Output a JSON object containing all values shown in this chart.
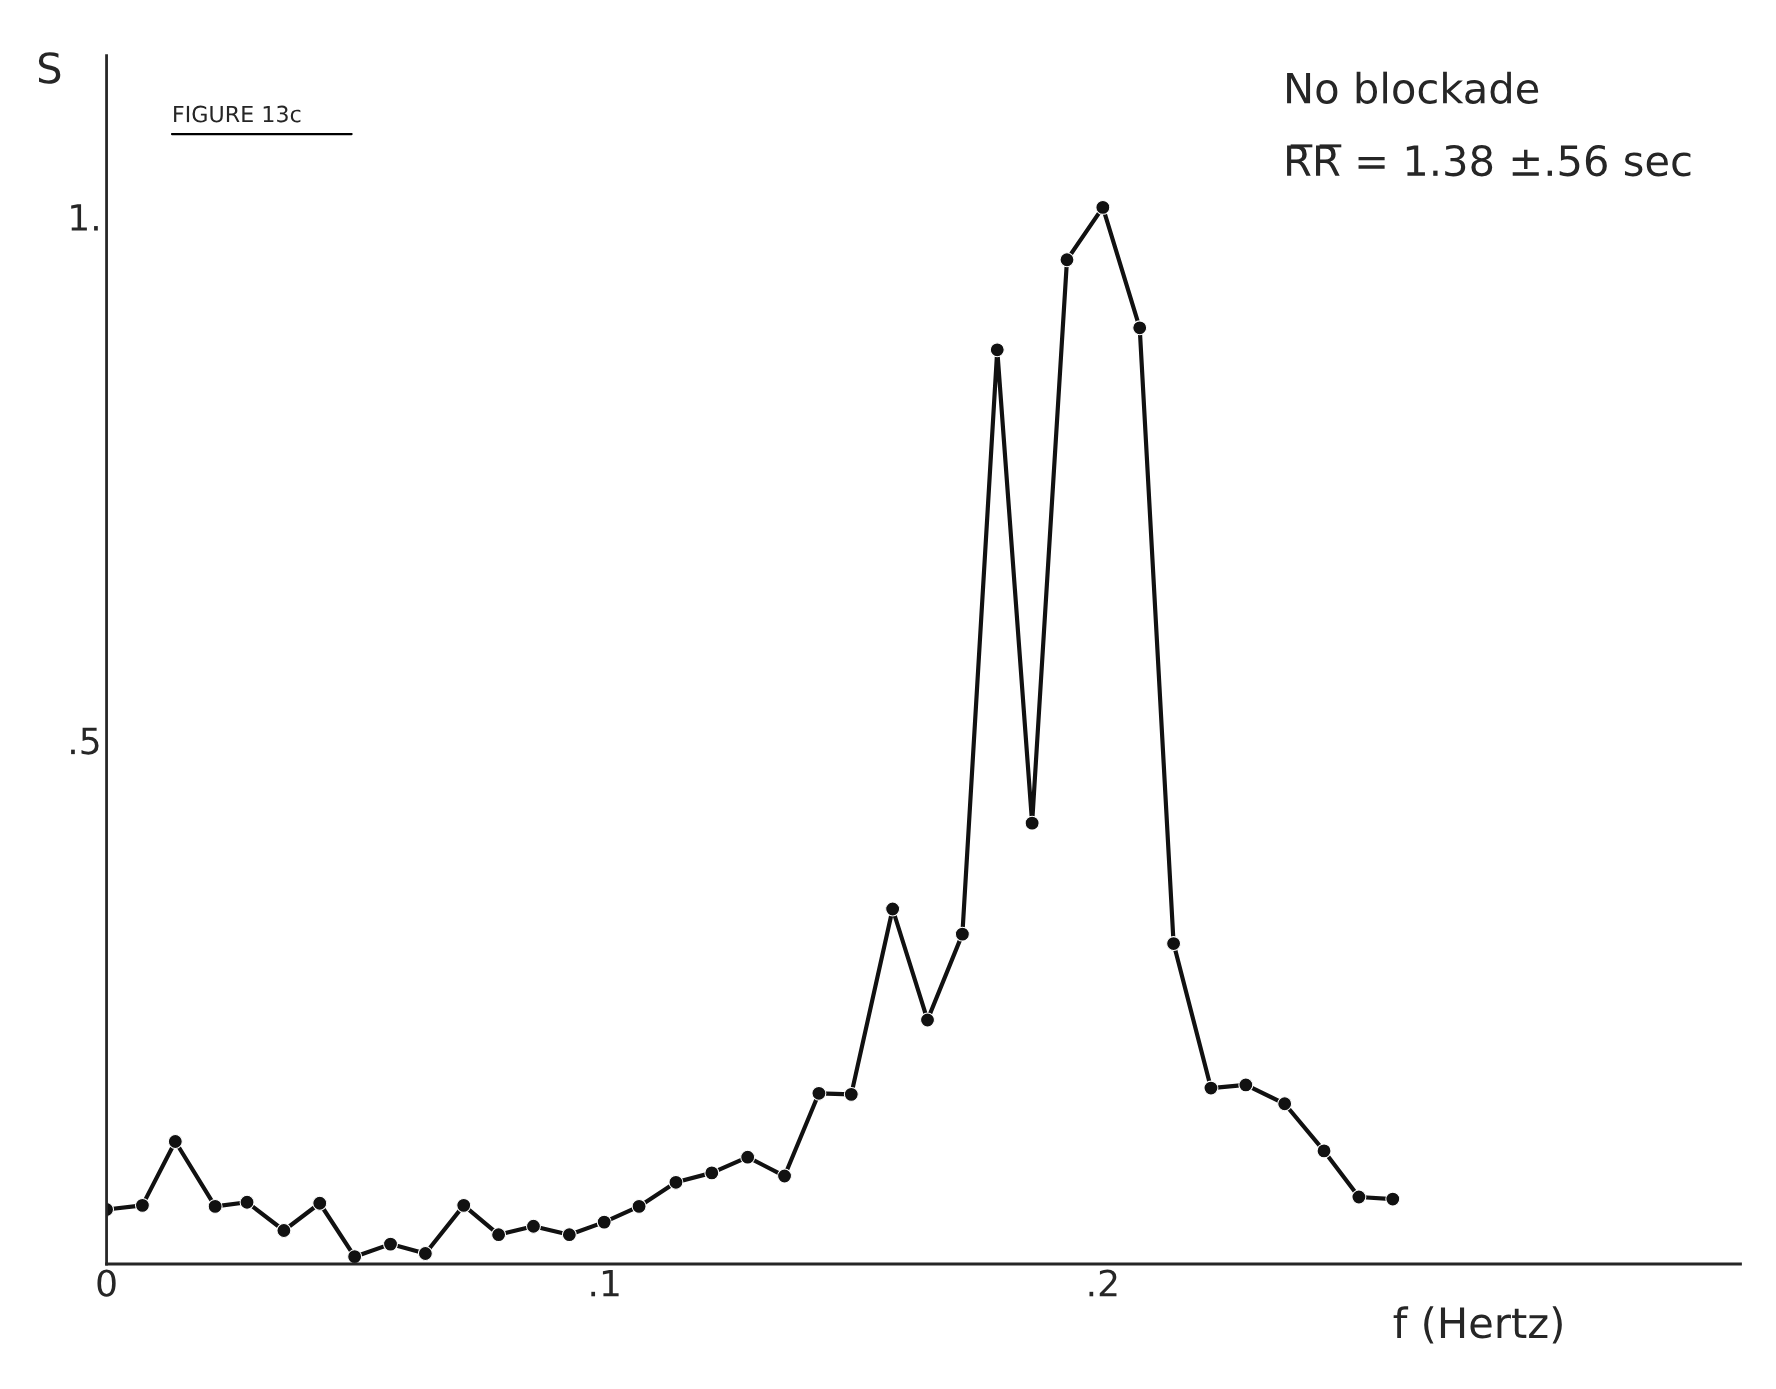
{
  "chart_data": {
    "type": "line",
    "ylabel": "S",
    "xlabel": "f (Hertz)",
    "x": [
      0,
      0.0072,
      0.0138,
      0.0218,
      0.0282,
      0.0356,
      0.0428,
      0.0498,
      0.057,
      0.064,
      0.0717,
      0.0787,
      0.0857,
      0.0929,
      0.0999,
      0.1069,
      0.1143,
      0.1215,
      0.1287,
      0.1361,
      0.143,
      0.1495,
      0.1578,
      0.1648,
      0.1718,
      0.1788,
      0.1858,
      0.1928,
      0.2,
      0.2074,
      0.2142,
      0.2217,
      0.2287,
      0.2365,
      0.2444,
      0.2514,
      0.2582
    ],
    "series": [
      {
        "color": "#111111",
        "values": [
          0.052,
          0.056,
          0.117,
          0.055,
          0.059,
          0.032,
          0.058,
          0.007,
          0.019,
          0.01,
          0.056,
          0.028,
          0.036,
          0.028,
          0.04,
          0.055,
          0.078,
          0.087,
          0.102,
          0.084,
          0.163,
          0.162,
          0.339,
          0.233,
          0.315,
          0.873,
          0.421,
          0.959,
          1.009,
          0.894,
          0.306,
          0.168,
          0.171,
          0.153,
          0.108,
          0.064,
          0.062
        ]
      }
    ],
    "xlim": [
      0,
      0.328
    ],
    "ylim": [
      0,
      1.154
    ],
    "xticks": [
      {
        "value": 0,
        "label": "0"
      },
      {
        "value": 0.1,
        "label": ".1"
      },
      {
        "value": 0.2,
        "label": ".2"
      }
    ],
    "yticks": [
      {
        "value": 0.5,
        "label": ".5"
      },
      {
        "value": 1,
        "label": "1."
      }
    ],
    "marker": "circle",
    "line_style": "solid",
    "grid": false,
    "legend": false,
    "annotations": [
      "FIGURE 13c",
      "No blockade",
      "R̅R̅ = 1.38 ±.56 sec"
    ]
  }
}
